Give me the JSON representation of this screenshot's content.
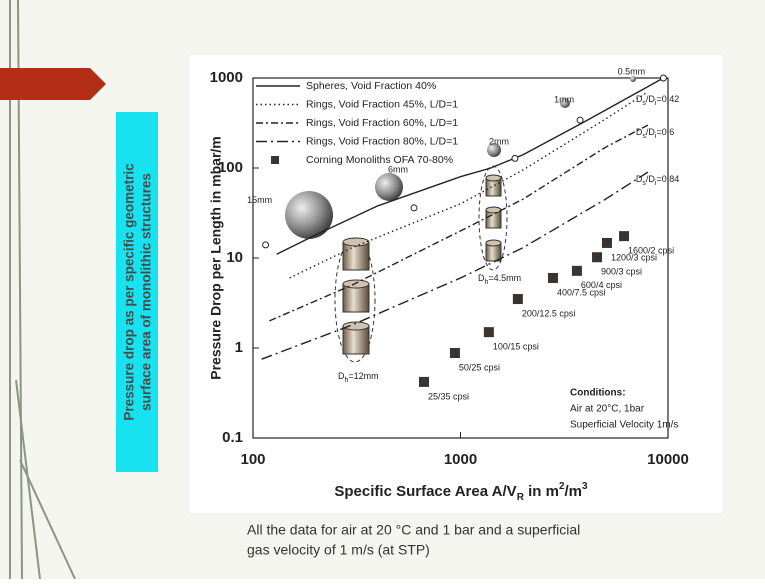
{
  "sidebar": {
    "lines": [
      "Pressure drop as per specific geometric",
      "surface area of monolithic structures"
    ]
  },
  "caption": {
    "lines": [
      "All the data for air at 20 °C and 1 bar and a superficial",
      "gas velocity of 1 m/s (at STP)"
    ]
  },
  "chart_data": {
    "type": "line",
    "xlabel": [
      "Specific Surface Area A/V",
      "R",
      " in m",
      "2",
      "/m",
      "3"
    ],
    "ylabel": "Pressure Drop per Length in mbar/m",
    "xscale": "log",
    "yscale": "log",
    "xlim": [
      100,
      10000
    ],
    "ylim": [
      0.1,
      1000
    ],
    "xticks": [
      100,
      1000,
      10000
    ],
    "yticks": [
      0.1,
      1,
      10,
      100,
      1000
    ],
    "legend": "upper left",
    "series": [
      {
        "name": "Spheres, Void Fraction 40%",
        "color": "#222222",
        "style": "solid",
        "x": [
          130,
          200,
          400,
          1000,
          1400,
          2000,
          4000,
          9500
        ],
        "y": [
          11,
          18,
          38,
          80,
          100,
          140,
          330,
          1000
        ]
      },
      {
        "name": "Rings, Void Fraction 45%, L/D=1",
        "color": "#222222",
        "style": "dotted",
        "x": [
          150,
          300,
          1000,
          2000,
          5000,
          8000
        ],
        "y": [
          6,
          13,
          40,
          95,
          350,
          700
        ],
        "end_label": [
          "D",
          "s",
          "/D",
          "i",
          "=0.42"
        ]
      },
      {
        "name": "Rings, Void Fraction 60%, L/D=1",
        "color": "#222222",
        "style": "dashdot",
        "x": [
          120,
          300,
          1000,
          2000,
          5000,
          8000
        ],
        "y": [
          2,
          5,
          20,
          45,
          170,
          300
        ],
        "end_label": [
          "D",
          "s",
          "/D",
          "i",
          "=0.6"
        ]
      },
      {
        "name": "Rings, Void Fraction 80%, L/D=1",
        "color": "#222222",
        "style": "longdashdot",
        "x": [
          110,
          300,
          1000,
          2000,
          5000,
          8000
        ],
        "y": [
          0.75,
          1.8,
          6,
          13,
          45,
          90
        ],
        "end_label": [
          "D",
          "s",
          "/D",
          "i",
          "=0.84"
        ]
      },
      {
        "name": "Corning Monoliths OFA 70-80%",
        "color": "#3a3430",
        "style": "square",
        "x": [
          667,
          940,
          1370,
          1890,
          2790,
          3640,
          4550,
          5080,
          6140
        ],
        "y": [
          0.42,
          0.88,
          1.5,
          3.5,
          6.0,
          7.2,
          10.2,
          14.7,
          17.5
        ],
        "point_labels": [
          "25/35 cpsi",
          "50/25 cpsi",
          "100/15 cpsi",
          "200/12.5 cpsi",
          "400/7.5 cpsi",
          "600/4 cpsi",
          "900/3 cpsi",
          "1200/3 cpsi",
          "1600/2 cpsi"
        ]
      }
    ],
    "sphere_points": {
      "x": [
        115,
        597,
        1830,
        3770,
        9500
      ],
      "y": [
        14,
        36,
        128,
        340,
        1000
      ],
      "point_labels": [
        "15mm",
        "6mm",
        "2mm",
        "1mm",
        "0.5mm"
      ]
    },
    "cylinder_labels": [
      [
        "D",
        "h",
        "=12mm"
      ],
      [
        "D",
        "h",
        "=4.5mm"
      ]
    ],
    "conditions": [
      "Conditions:",
      "Air at 20°C, 1bar",
      "Superficial Velocity 1m/s"
    ]
  }
}
